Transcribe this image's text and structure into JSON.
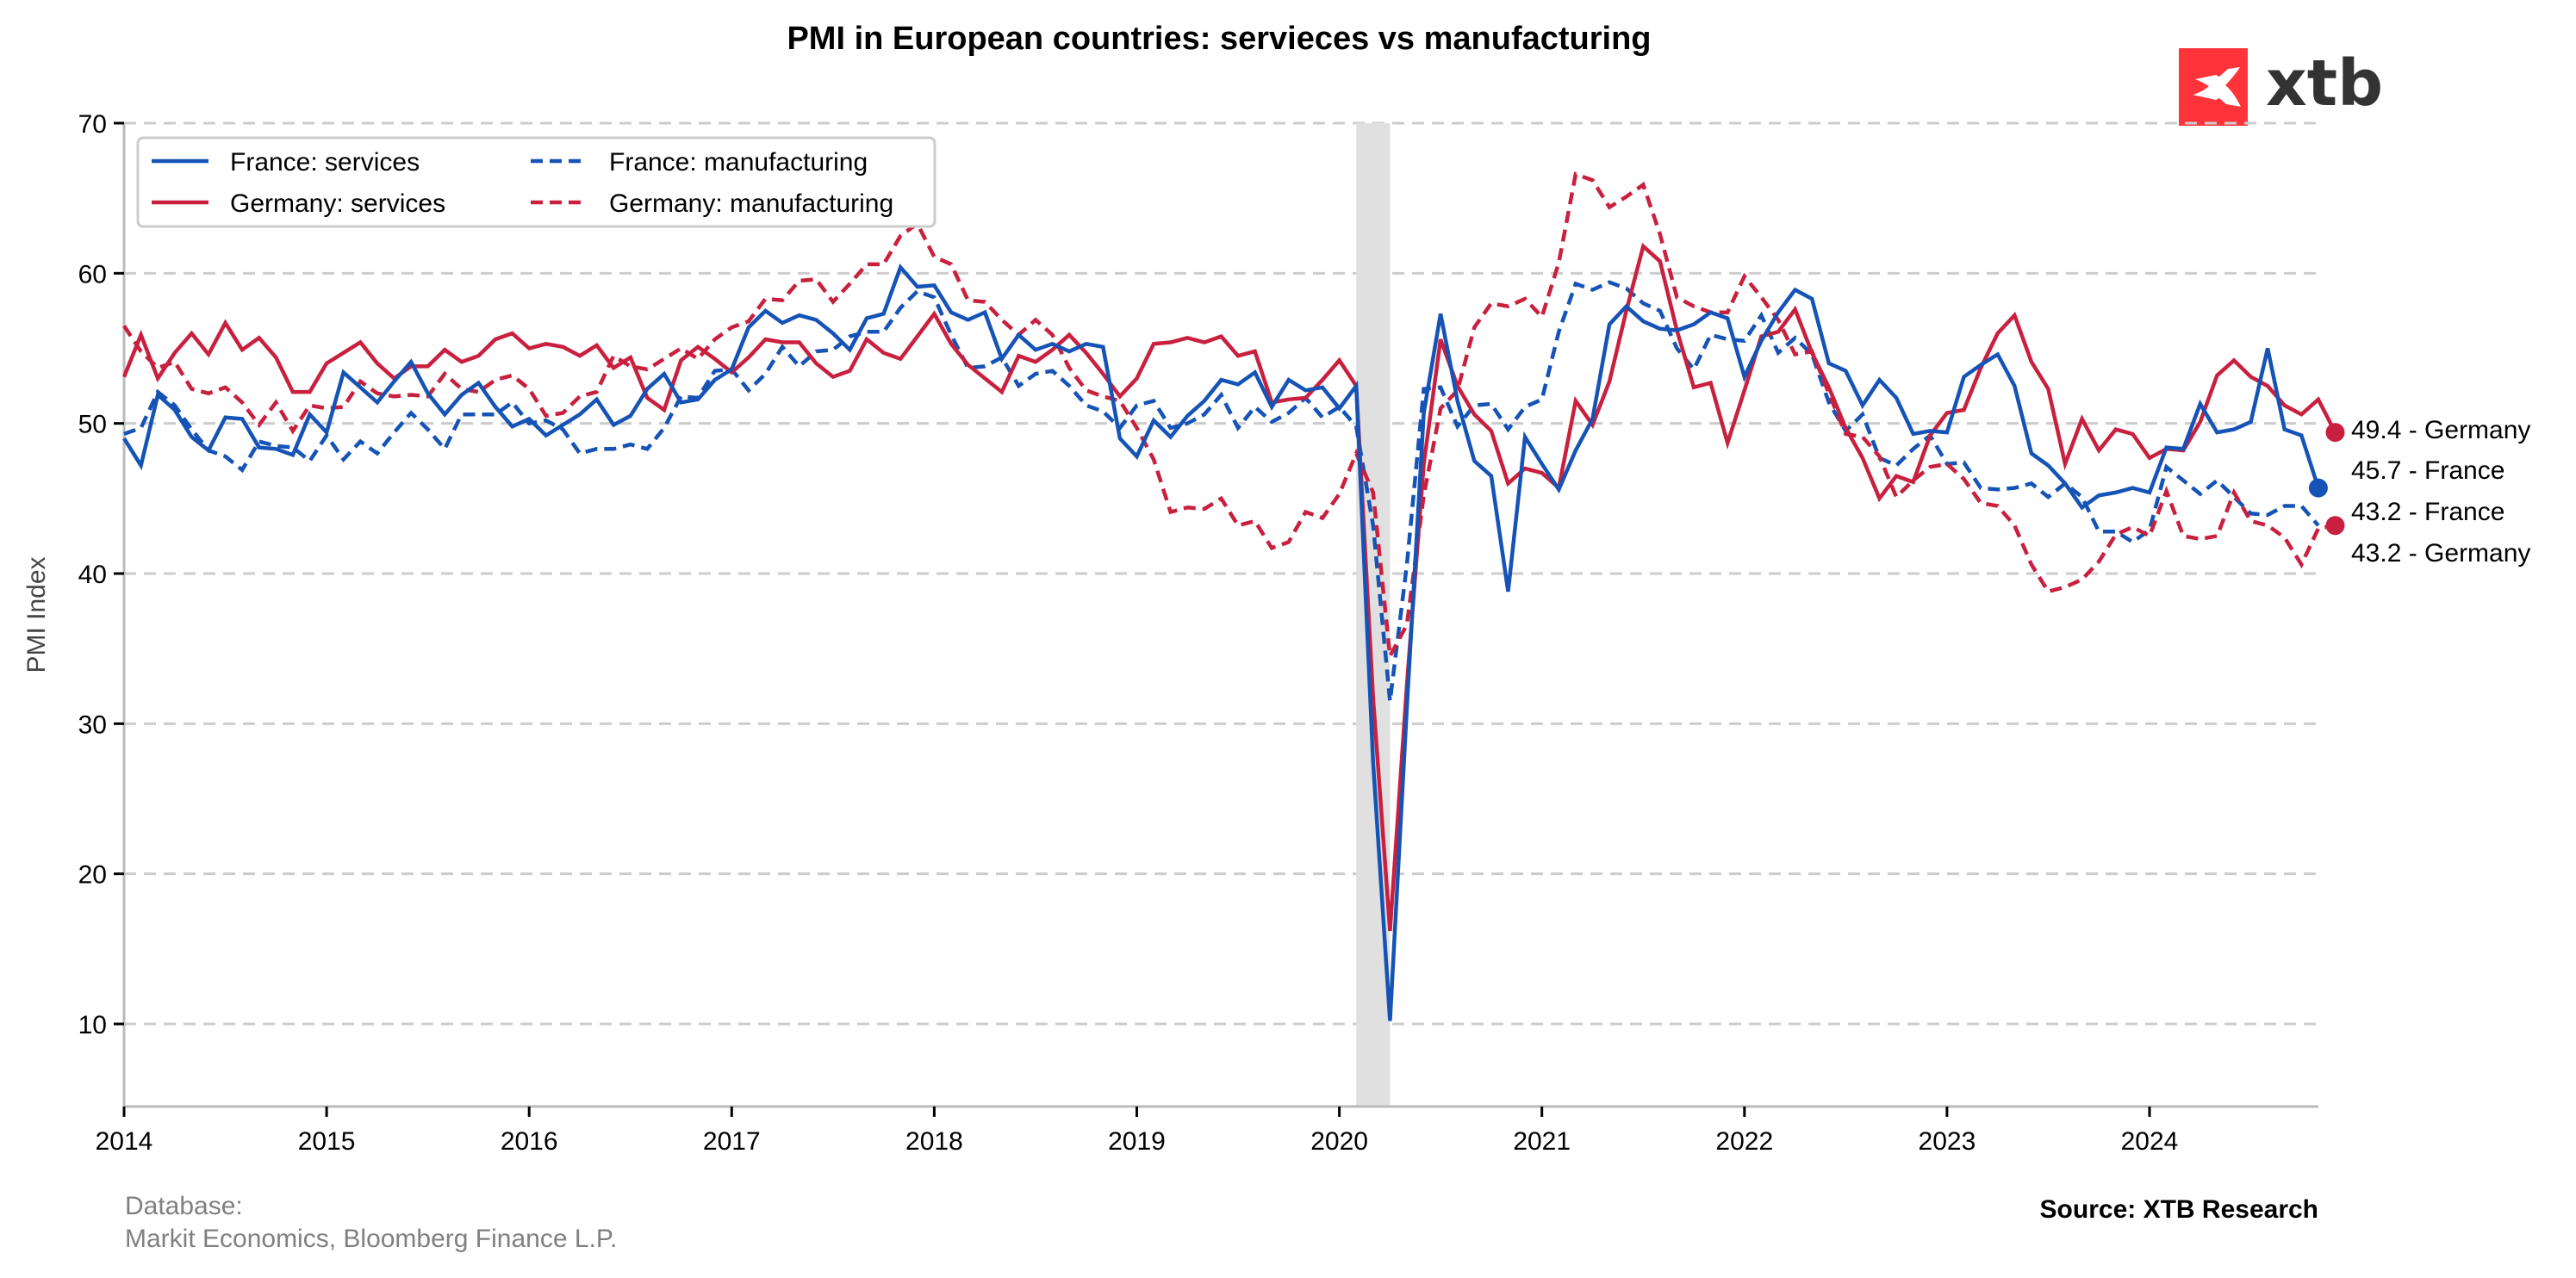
{
  "brand": {
    "logo_text": "xtb",
    "logo_color": "#ff3339"
  },
  "footer": {
    "database_label": "Database:",
    "database_value": "Markit Economics, Bloomberg Finance L.P.",
    "source": "Source: XTB Research"
  },
  "chart_data": {
    "type": "line",
    "title": "PMI in European countries: servieces vs manufacturing",
    "xlabel": "",
    "ylabel": "PMI Index",
    "ylim": [
      4.5,
      70
    ],
    "yticks": [
      10,
      20,
      30,
      40,
      50,
      60,
      70
    ],
    "xlim": [
      "2014-01",
      "2024-11"
    ],
    "xticks": [
      "2014",
      "2015",
      "2016",
      "2017",
      "2018",
      "2019",
      "2020",
      "2021",
      "2022",
      "2023",
      "2024"
    ],
    "grid": "horizontal dashed",
    "legend_position": "top-left",
    "shaded_period": {
      "start": "2020-02",
      "end": "2020-04",
      "color": "#e0e0e0"
    },
    "x_start": "2014-01",
    "frequency": "monthly",
    "series": [
      {
        "name": "France: services",
        "color": "#1553b6",
        "style": "solid",
        "values": [
          49.0,
          47.2,
          51.9,
          50.9,
          49.1,
          48.2,
          50.4,
          50.3,
          48.4,
          48.3,
          47.9,
          50.6,
          49.4,
          53.4,
          52.4,
          51.4,
          52.8,
          54.1,
          52.0,
          50.6,
          51.9,
          52.7,
          51.1,
          49.8,
          50.3,
          49.2,
          49.9,
          50.6,
          51.6,
          49.9,
          50.5,
          52.3,
          53.3,
          51.4,
          51.6,
          52.9,
          53.6,
          56.4,
          57.5,
          56.7,
          57.2,
          56.9,
          56.0,
          54.9,
          57.0,
          57.3,
          60.4,
          59.1,
          59.2,
          57.4,
          56.9,
          57.4,
          54.3,
          55.9,
          54.9,
          55.3,
          54.8,
          55.3,
          55.1,
          49.0,
          47.8,
          50.2,
          49.1,
          50.5,
          51.5,
          52.9,
          52.6,
          53.4,
          51.1,
          52.9,
          52.2,
          52.4,
          51.0,
          52.5,
          27.4,
          10.2,
          31.1,
          50.7,
          57.3,
          51.5,
          47.5,
          46.5,
          38.8,
          49.1,
          47.3,
          45.6,
          48.2,
          50.3,
          56.6,
          57.8,
          56.8,
          56.3,
          56.2,
          56.6,
          57.4,
          57.0,
          53.1,
          55.5,
          57.4,
          58.9,
          58.3,
          54.0,
          53.5,
          51.2,
          52.9,
          51.7,
          49.3,
          49.5,
          49.4,
          53.1,
          53.9,
          54.6,
          52.5,
          48.0,
          47.2,
          46.0,
          44.4,
          45.2,
          45.4,
          45.7,
          45.4,
          48.4,
          48.3,
          51.3,
          49.4,
          49.6,
          50.1,
          55.0,
          49.6,
          49.2,
          45.7
        ]
      },
      {
        "name": "France: manufacturing",
        "color": "#1553b6",
        "style": "dashed",
        "values": [
          49.3,
          49.7,
          52.1,
          51.2,
          49.6,
          48.2,
          47.8,
          46.9,
          48.8,
          48.5,
          48.4,
          47.5,
          49.2,
          47.6,
          48.8,
          48.0,
          49.4,
          50.7,
          49.6,
          48.3,
          50.6,
          50.6,
          50.6,
          51.4,
          50.0,
          50.2,
          49.6,
          48.0,
          48.3,
          48.3,
          48.6,
          48.3,
          49.7,
          51.8,
          51.7,
          53.5,
          53.6,
          52.2,
          53.3,
          55.1,
          53.8,
          54.8,
          54.9,
          55.8,
          56.1,
          56.1,
          57.7,
          58.8,
          58.4,
          55.9,
          53.7,
          53.8,
          54.4,
          52.5,
          53.3,
          53.5,
          52.5,
          51.2,
          50.8,
          49.7,
          51.2,
          51.5,
          49.7,
          50.0,
          50.6,
          51.9,
          49.7,
          51.1,
          50.1,
          50.7,
          51.7,
          50.4,
          51.1,
          49.8,
          43.2,
          31.5,
          40.6,
          52.3,
          52.4,
          49.8,
          51.2,
          51.3,
          49.6,
          51.1,
          51.6,
          56.1,
          59.3,
          58.9,
          59.4,
          59.0,
          58.0,
          57.5,
          55.0,
          53.6,
          55.9,
          55.6,
          55.5,
          57.2,
          54.7,
          55.7,
          54.6,
          51.4,
          49.5,
          50.6,
          47.7,
          47.2,
          48.3,
          49.2,
          47.3,
          47.4,
          45.7,
          45.6,
          45.7,
          46.0,
          45.1,
          46.0,
          45.1,
          42.8,
          42.8,
          42.1,
          42.9,
          47.1,
          46.2,
          45.3,
          46.2,
          45.1,
          44.0,
          43.9,
          44.5,
          44.5,
          43.2
        ]
      },
      {
        "name": "Germany: services",
        "color": "#c8203e",
        "style": "solid",
        "values": [
          53.1,
          55.9,
          53.0,
          54.7,
          56.0,
          54.6,
          56.7,
          54.9,
          55.7,
          54.4,
          52.1,
          52.1,
          54.0,
          54.7,
          55.4,
          54.0,
          53.0,
          53.8,
          53.8,
          54.9,
          54.1,
          54.5,
          55.6,
          56.0,
          55.0,
          55.3,
          55.1,
          54.5,
          55.2,
          53.7,
          54.4,
          51.7,
          50.9,
          54.2,
          55.1,
          54.3,
          53.4,
          54.4,
          55.6,
          55.4,
          55.4,
          54.0,
          53.1,
          53.5,
          55.6,
          54.7,
          54.3,
          55.8,
          57.3,
          55.3,
          53.9,
          53.0,
          52.1,
          54.5,
          54.1,
          54.9,
          55.9,
          54.7,
          53.3,
          51.8,
          53.0,
          55.3,
          55.4,
          55.7,
          55.4,
          55.8,
          54.5,
          54.8,
          51.4,
          51.6,
          51.7,
          52.9,
          54.2,
          52.5,
          31.7,
          16.2,
          32.6,
          47.3,
          55.6,
          52.5,
          50.6,
          49.5,
          46.0,
          47.0,
          46.7,
          45.7,
          51.5,
          49.9,
          52.8,
          57.5,
          61.8,
          60.8,
          56.2,
          52.4,
          52.7,
          48.7,
          52.2,
          55.8,
          56.1,
          57.6,
          54.7,
          52.4,
          49.7,
          47.7,
          45.0,
          46.5,
          46.1,
          49.2,
          50.7,
          50.9,
          53.7,
          56.0,
          57.2,
          54.1,
          52.3,
          47.3,
          50.3,
          48.2,
          49.6,
          49.3,
          47.7,
          48.3,
          48.2,
          50.1,
          53.2,
          54.2,
          53.1,
          52.5,
          51.2,
          50.6,
          51.6,
          49.4
        ]
      },
      {
        "name": "Germany: manufacturing",
        "color": "#c8203e",
        "style": "dashed",
        "values": [
          56.5,
          54.8,
          53.7,
          54.1,
          52.3,
          52.0,
          52.4,
          51.4,
          49.9,
          51.4,
          49.5,
          51.2,
          51.0,
          51.1,
          52.8,
          52.0,
          51.8,
          51.9,
          51.8,
          53.3,
          52.3,
          52.1,
          52.9,
          53.2,
          52.3,
          50.5,
          50.7,
          51.8,
          52.1,
          54.5,
          53.8,
          53.6,
          54.3,
          55.0,
          54.3,
          55.6,
          56.4,
          56.8,
          58.3,
          58.2,
          59.5,
          59.6,
          58.1,
          59.3,
          60.6,
          60.6,
          62.5,
          63.3,
          61.1,
          60.6,
          58.2,
          58.1,
          56.9,
          55.9,
          56.9,
          55.9,
          53.7,
          52.2,
          51.8,
          51.5,
          49.7,
          47.6,
          44.1,
          44.4,
          44.3,
          45.0,
          43.2,
          43.5,
          41.7,
          42.1,
          44.1,
          43.7,
          45.3,
          48.0,
          45.4,
          34.5,
          36.6,
          45.2,
          51.0,
          52.2,
          56.4,
          58.0,
          57.8,
          58.3,
          57.1,
          60.7,
          66.6,
          66.2,
          64.4,
          65.1,
          65.9,
          62.6,
          58.4,
          57.8,
          57.4,
          57.4,
          59.8,
          58.4,
          56.9,
          54.6,
          54.8,
          52.0,
          49.3,
          49.1,
          47.8,
          45.1,
          46.2,
          47.1,
          47.3,
          46.3,
          44.7,
          44.5,
          43.2,
          40.6,
          38.8,
          39.1,
          39.6,
          40.8,
          42.6,
          43.1,
          42.5,
          45.5,
          42.5,
          42.3,
          42.5,
          45.4,
          43.5,
          43.2,
          42.4,
          40.6,
          43.0,
          43.2
        ]
      }
    ],
    "last_value_annotations": [
      {
        "text": "49.4 - Germany",
        "series": "Germany: services",
        "value": 49.4
      },
      {
        "text": "45.7 - France",
        "series": "France: services",
        "value": 45.7
      },
      {
        "text": "43.2 - France",
        "series": "France: manufacturing",
        "value": 43.2
      },
      {
        "text": "43.2 - Germany",
        "series": "Germany: manufacturing",
        "value": 43.2
      }
    ]
  }
}
